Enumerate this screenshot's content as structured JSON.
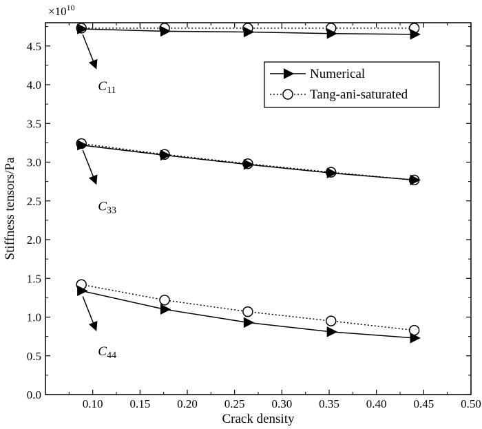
{
  "chart_data": {
    "type": "line",
    "title": "",
    "xlabel": "Crack density",
    "ylabel": "Stiffness tensors/Pa",
    "y_scale_factor": "×10",
    "y_scale_exponent": "10",
    "xlim": [
      0.05,
      0.5
    ],
    "ylim": [
      0,
      4.8
    ],
    "x_ticks": [
      "0.10",
      "0.15",
      "0.20",
      "0.25",
      "0.30",
      "0.35",
      "0.40",
      "0.45",
      "0.50"
    ],
    "y_ticks": [
      "0.0",
      "0.5",
      "1.0",
      "1.5",
      "2.0",
      "2.5",
      "3.0",
      "3.5",
      "4.0",
      "4.5"
    ],
    "x_tick_values": [
      0.1,
      0.15,
      0.2,
      0.25,
      0.3,
      0.35,
      0.4,
      0.45,
      0.5
    ],
    "y_tick_values": [
      0,
      0.5,
      1.0,
      1.5,
      2.0,
      2.5,
      3.0,
      3.5,
      4.0,
      4.5
    ],
    "x": [
      0.088,
      0.176,
      0.264,
      0.352,
      0.44
    ],
    "grid": false,
    "legend_position": "top-right",
    "series": [
      {
        "name": "Numerical",
        "component": "C11",
        "style": "solid-triangle",
        "values": [
          4.72,
          4.69,
          4.68,
          4.66,
          4.65
        ]
      },
      {
        "name": "Numerical",
        "component": "C33",
        "style": "solid-triangle",
        "values": [
          3.22,
          3.09,
          2.97,
          2.86,
          2.77
        ]
      },
      {
        "name": "Numerical",
        "component": "C44",
        "style": "solid-triangle",
        "values": [
          1.34,
          1.1,
          0.93,
          0.81,
          0.73
        ]
      },
      {
        "name": "Tang-ani-saturated",
        "component": "C11",
        "style": "dotted-circle",
        "values": [
          4.73,
          4.73,
          4.73,
          4.73,
          4.73
        ]
      },
      {
        "name": "Tang-ani-saturated",
        "component": "C33",
        "style": "dotted-circle",
        "values": [
          3.24,
          3.1,
          2.98,
          2.87,
          2.77
        ]
      },
      {
        "name": "Tang-ani-saturated",
        "component": "C44",
        "style": "dotted-circle",
        "values": [
          1.42,
          1.22,
          1.07,
          0.95,
          0.83
        ]
      }
    ],
    "legend": [
      {
        "label": "Numerical",
        "style": "solid-triangle"
      },
      {
        "label": "Tang-ani-saturated",
        "style": "dotted-circle"
      }
    ],
    "annotations": [
      {
        "letter": "C",
        "sub": "11",
        "point": [
          0.088,
          4.7
        ],
        "label_at": [
          0.107,
          4.0
        ]
      },
      {
        "letter": "C",
        "sub": "33",
        "point": [
          0.088,
          3.21
        ],
        "label_at": [
          0.107,
          2.45
        ]
      },
      {
        "letter": "C",
        "sub": "44",
        "point": [
          0.088,
          1.32
        ],
        "label_at": [
          0.107,
          0.58
        ]
      }
    ]
  }
}
